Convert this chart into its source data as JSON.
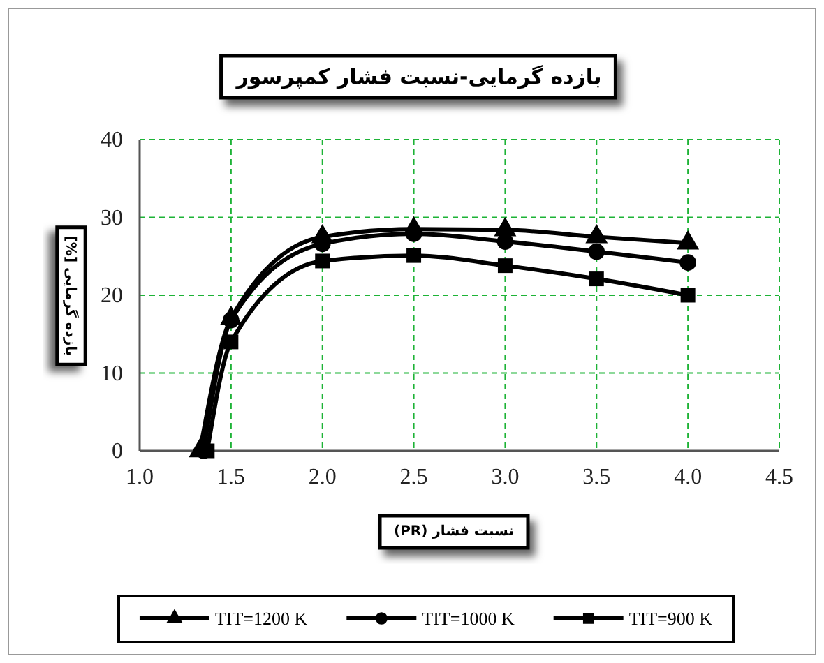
{
  "chart_data": {
    "type": "line",
    "title": "بازده گرمایی-نسبت فشار کمپرسور",
    "xlabel": "نسبت فشار (PR)",
    "ylabel": "بازده گرمایی [%]",
    "xlim": [
      1.0,
      4.5
    ],
    "xticks": [
      {
        "value": 1.0,
        "label": "1.0"
      },
      {
        "value": 1.5,
        "label": "1.5"
      },
      {
        "value": 2.0,
        "label": "2.0"
      },
      {
        "value": 2.5,
        "label": "2.5"
      },
      {
        "value": 3.0,
        "label": "3.0"
      },
      {
        "value": 3.5,
        "label": "3.5"
      },
      {
        "value": 4.0,
        "label": "4.0"
      },
      {
        "value": 4.5,
        "label": "4.5"
      }
    ],
    "ylim": [
      0,
      40
    ],
    "yticks": [
      0,
      10,
      20,
      30,
      40
    ],
    "grid": true,
    "legend": "bottom",
    "line_style": "solid",
    "series": [
      {
        "name": "TIT=1200 K",
        "color": "#000000",
        "marker": "triangle",
        "x": [
          1.33,
          1.5,
          2.0,
          2.5,
          3.0,
          3.5,
          4.0
        ],
        "values": [
          0,
          17.0,
          27.5,
          28.5,
          28.4,
          27.5,
          26.7
        ]
      },
      {
        "name": "TIT=1000 K",
        "color": "#000000",
        "marker": "circle",
        "x": [
          1.35,
          1.5,
          2.0,
          2.5,
          3.0,
          3.5,
          4.0
        ],
        "values": [
          0,
          16.8,
          26.6,
          27.9,
          26.9,
          25.6,
          24.2
        ]
      },
      {
        "name": "TIT=900 K",
        "color": "#000000",
        "marker": "square",
        "x": [
          1.37,
          1.5,
          2.0,
          2.5,
          3.0,
          3.5,
          4.0
        ],
        "values": [
          0,
          14.0,
          24.4,
          25.1,
          23.8,
          22.1,
          20.0
        ]
      }
    ]
  }
}
